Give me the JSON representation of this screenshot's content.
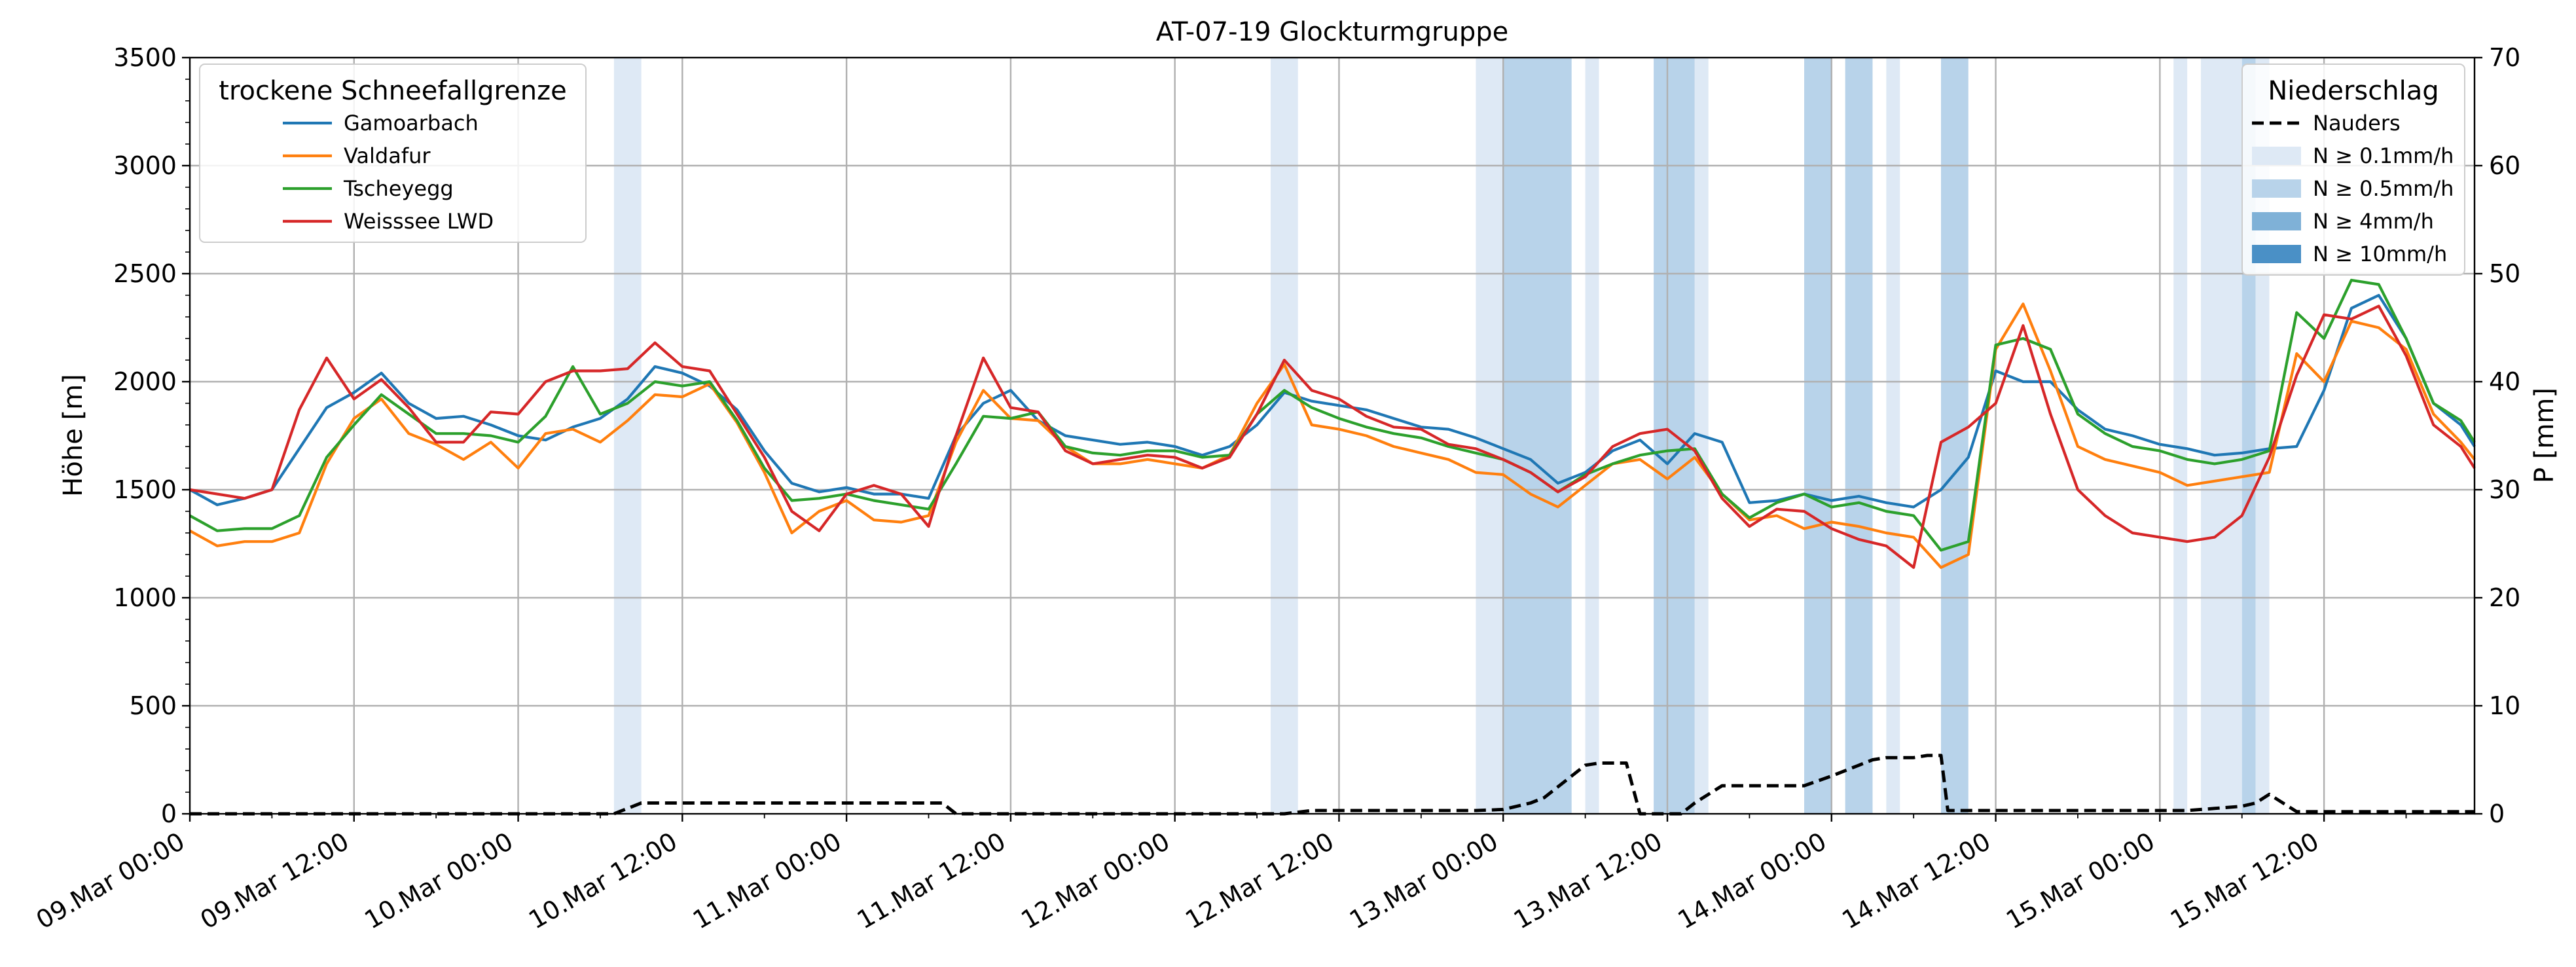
{
  "chart_data": {
    "type": "line",
    "title": "AT-07-19 Glockturmgruppe",
    "ylabel_left": "Höhe [m]",
    "ylabel_right": "P [mm]",
    "xlim_hours": [
      0,
      167
    ],
    "ylim_left": [
      0,
      3500
    ],
    "ylim_right": [
      0,
      70
    ],
    "left_ticks": [
      0,
      500,
      1000,
      1500,
      2000,
      2500,
      3000,
      3500
    ],
    "right_ticks": [
      0,
      10,
      20,
      30,
      40,
      50,
      60,
      70
    ],
    "grid": true,
    "x_tick_labels": [
      "09.Mar 00:00",
      "09.Mar 12:00",
      "10.Mar 00:00",
      "10.Mar 12:00",
      "11.Mar 00:00",
      "11.Mar 12:00",
      "12.Mar 00:00",
      "12.Mar 12:00",
      "13.Mar 00:00",
      "13.Mar 12:00",
      "14.Mar 00:00",
      "14.Mar 12:00",
      "15.Mar 00:00",
      "15.Mar 12:00"
    ],
    "x_tick_hours": [
      0,
      12,
      24,
      36,
      48,
      60,
      72,
      84,
      96,
      108,
      120,
      132,
      144,
      156
    ],
    "legend_left": {
      "title": "trockene Schneefallgrenze",
      "location": "upper-left"
    },
    "legend_right": {
      "title": "Niederschlag",
      "location": "upper-right",
      "entries": [
        {
          "label": "Nauders",
          "style": "dashed",
          "color": "#000000"
        },
        {
          "label": "N ≥ 0.1mm/h",
          "color": "#dee9f5"
        },
        {
          "label": "N ≥ 0.5mm/h",
          "color": "#b8d3ea"
        },
        {
          "label": "N ≥ 4mm/h",
          "color": "#7fb1d7"
        },
        {
          "label": "N ≥ 10mm/h",
          "color": "#4a90c6"
        }
      ]
    },
    "precip_bands": [
      {
        "start": 31.0,
        "end": 33.0,
        "level": 1
      },
      {
        "start": 79.0,
        "end": 81.0,
        "level": 1
      },
      {
        "start": 94.0,
        "end": 96.0,
        "level": 1
      },
      {
        "start": 96.0,
        "end": 101.0,
        "level": 2
      },
      {
        "start": 102.0,
        "end": 103.0,
        "level": 1
      },
      {
        "start": 107.0,
        "end": 110.0,
        "level": 2
      },
      {
        "start": 110.0,
        "end": 111.0,
        "level": 1
      },
      {
        "start": 118.0,
        "end": 120.0,
        "level": 2
      },
      {
        "start": 121.0,
        "end": 123.0,
        "level": 2
      },
      {
        "start": 124.0,
        "end": 125.0,
        "level": 1
      },
      {
        "start": 128.0,
        "end": 130.0,
        "level": 2
      },
      {
        "start": 145.0,
        "end": 146.0,
        "level": 1
      },
      {
        "start": 147.0,
        "end": 150.0,
        "level": 1
      },
      {
        "start": 150.0,
        "end": 151.0,
        "level": 2
      },
      {
        "start": 151.0,
        "end": 152.0,
        "level": 1
      }
    ],
    "series": [
      {
        "name": "Gamoarbach",
        "color": "#1f77b4",
        "x": [
          0,
          2,
          4,
          6,
          8,
          10,
          12,
          14,
          16,
          18,
          20,
          22,
          24,
          26,
          28,
          30,
          32,
          34,
          36,
          38,
          40,
          42,
          44,
          46,
          48,
          50,
          52,
          54,
          56,
          58,
          60,
          62,
          64,
          66,
          68,
          70,
          72,
          74,
          76,
          78,
          80,
          82,
          84,
          86,
          88,
          90,
          92,
          94,
          96,
          98,
          100,
          102,
          104,
          106,
          108,
          110,
          112,
          114,
          116,
          118,
          120,
          122,
          124,
          126,
          128,
          130,
          132,
          134,
          136,
          138,
          140,
          142,
          144,
          146,
          148,
          150,
          152,
          154,
          156,
          158,
          160,
          162,
          164,
          166,
          167
        ],
        "y": [
          1500,
          1430,
          1460,
          1500,
          1690,
          1880,
          1950,
          2040,
          1900,
          1830,
          1840,
          1800,
          1750,
          1730,
          1790,
          1830,
          1920,
          2070,
          2040,
          1980,
          1870,
          1680,
          1530,
          1490,
          1510,
          1480,
          1480,
          1460,
          1750,
          1900,
          1960,
          1820,
          1750,
          1730,
          1710,
          1720,
          1700,
          1660,
          1700,
          1800,
          1950,
          1910,
          1890,
          1870,
          1830,
          1790,
          1780,
          1740,
          1690,
          1640,
          1530,
          1580,
          1680,
          1730,
          1620,
          1760,
          1720,
          1440,
          1450,
          1480,
          1450,
          1470,
          1440,
          1420,
          1500,
          1650,
          2050,
          2000,
          2000,
          1870,
          1780,
          1750,
          1710,
          1690,
          1660,
          1670,
          1690,
          1700,
          1960,
          2340,
          2400,
          2200,
          1900,
          1800,
          1700
        ]
      },
      {
        "name": "Valdafur",
        "color": "#ff7f0e",
        "x": [
          0,
          2,
          4,
          6,
          8,
          10,
          12,
          14,
          16,
          18,
          20,
          22,
          24,
          26,
          28,
          30,
          32,
          34,
          36,
          38,
          40,
          42,
          44,
          46,
          48,
          50,
          52,
          54,
          56,
          58,
          60,
          62,
          64,
          66,
          68,
          70,
          72,
          74,
          76,
          78,
          80,
          82,
          84,
          86,
          88,
          90,
          92,
          94,
          96,
          98,
          100,
          102,
          104,
          106,
          108,
          110,
          112,
          114,
          116,
          118,
          120,
          122,
          124,
          126,
          128,
          130,
          132,
          134,
          136,
          138,
          140,
          142,
          144,
          146,
          148,
          150,
          152,
          154,
          156,
          158,
          160,
          162,
          164,
          166,
          167
        ],
        "y": [
          1310,
          1240,
          1260,
          1260,
          1300,
          1620,
          1830,
          1920,
          1760,
          1710,
          1640,
          1720,
          1600,
          1760,
          1780,
          1720,
          1820,
          1940,
          1930,
          1990,
          1810,
          1580,
          1300,
          1400,
          1450,
          1360,
          1350,
          1380,
          1720,
          1960,
          1830,
          1820,
          1700,
          1620,
          1620,
          1640,
          1620,
          1600,
          1660,
          1900,
          2080,
          1800,
          1780,
          1750,
          1700,
          1670,
          1640,
          1580,
          1570,
          1480,
          1420,
          1520,
          1620,
          1640,
          1550,
          1650,
          1480,
          1360,
          1380,
          1320,
          1350,
          1330,
          1300,
          1280,
          1140,
          1200,
          2150,
          2360,
          2050,
          1700,
          1640,
          1610,
          1580,
          1520,
          1540,
          1560,
          1580,
          2130,
          2000,
          2280,
          2250,
          2150,
          1850,
          1720,
          1640
        ]
      },
      {
        "name": "Tscheyegg",
        "color": "#2ca02c",
        "x": [
          0,
          2,
          4,
          6,
          8,
          10,
          12,
          14,
          16,
          18,
          20,
          22,
          24,
          26,
          28,
          30,
          32,
          34,
          36,
          38,
          40,
          42,
          44,
          46,
          48,
          50,
          52,
          54,
          56,
          58,
          60,
          62,
          64,
          66,
          68,
          70,
          72,
          74,
          76,
          78,
          80,
          82,
          84,
          86,
          88,
          90,
          92,
          94,
          96,
          98,
          100,
          102,
          104,
          106,
          108,
          110,
          112,
          114,
          116,
          118,
          120,
          122,
          124,
          126,
          128,
          130,
          132,
          134,
          136,
          138,
          140,
          142,
          144,
          146,
          148,
          150,
          152,
          154,
          156,
          158,
          160,
          162,
          164,
          166,
          167
        ],
        "y": [
          1380,
          1310,
          1320,
          1320,
          1380,
          1650,
          1800,
          1940,
          1850,
          1760,
          1760,
          1750,
          1720,
          1840,
          2070,
          1850,
          1900,
          2000,
          1980,
          2000,
          1820,
          1600,
          1450,
          1460,
          1480,
          1450,
          1430,
          1410,
          1620,
          1840,
          1830,
          1860,
          1700,
          1670,
          1660,
          1680,
          1680,
          1650,
          1660,
          1850,
          1960,
          1880,
          1830,
          1790,
          1760,
          1740,
          1700,
          1670,
          1640,
          1580,
          1490,
          1570,
          1620,
          1660,
          1680,
          1690,
          1480,
          1370,
          1440,
          1480,
          1420,
          1440,
          1400,
          1380,
          1220,
          1260,
          2170,
          2200,
          2150,
          1850,
          1760,
          1700,
          1680,
          1640,
          1620,
          1640,
          1680,
          2320,
          2200,
          2470,
          2450,
          2200,
          1900,
          1820,
          1720
        ]
      },
      {
        "name": "Weisssee LWD",
        "color": "#d62728",
        "x": [
          0,
          2,
          4,
          6,
          8,
          10,
          12,
          14,
          16,
          18,
          20,
          22,
          24,
          26,
          28,
          30,
          32,
          34,
          36,
          38,
          40,
          42,
          44,
          46,
          48,
          50,
          52,
          54,
          56,
          58,
          60,
          62,
          64,
          66,
          68,
          70,
          72,
          74,
          76,
          78,
          80,
          82,
          84,
          86,
          88,
          90,
          92,
          94,
          96,
          98,
          100,
          102,
          104,
          106,
          108,
          110,
          112,
          114,
          116,
          118,
          120,
          122,
          124,
          126,
          128,
          130,
          132,
          134,
          136,
          138,
          140,
          142,
          144,
          146,
          148,
          150,
          152,
          154,
          156,
          158,
          160,
          162,
          164,
          166,
          167
        ],
        "y": [
          1500,
          1480,
          1460,
          1500,
          1870,
          2110,
          1920,
          2010,
          1880,
          1720,
          1720,
          1860,
          1850,
          2000,
          2050,
          2050,
          2060,
          2180,
          2070,
          2050,
          1850,
          1650,
          1400,
          1310,
          1480,
          1520,
          1480,
          1330,
          1750,
          2110,
          1880,
          1860,
          1680,
          1620,
          1640,
          1660,
          1650,
          1600,
          1650,
          1850,
          2100,
          1960,
          1920,
          1840,
          1790,
          1780,
          1710,
          1690,
          1640,
          1580,
          1490,
          1560,
          1700,
          1760,
          1780,
          1680,
          1460,
          1330,
          1410,
          1400,
          1320,
          1270,
          1240,
          1140,
          1720,
          1790,
          1900,
          2260,
          1850,
          1500,
          1380,
          1300,
          1280,
          1260,
          1280,
          1380,
          1650,
          2030,
          2310,
          2290,
          2350,
          2120,
          1800,
          1700,
          1600
        ]
      },
      {
        "name": "Nauders",
        "axis": "right",
        "style": "dashed",
        "color": "#000000",
        "x": [
          0,
          31,
          33,
          36,
          40,
          44,
          48,
          52,
          55,
          56,
          58,
          60,
          64,
          68,
          72,
          76,
          80,
          82,
          84,
          88,
          92,
          94,
          96,
          98,
          99,
          100,
          101,
          102,
          103,
          104,
          105,
          106,
          107,
          108,
          109,
          110,
          112,
          114,
          116,
          118,
          120,
          122,
          123,
          124,
          126,
          127,
          128,
          128.5,
          130,
          134,
          138,
          142,
          146,
          148,
          150,
          151,
          152,
          154,
          158,
          162,
          166,
          167
        ],
        "y": [
          0,
          0,
          1,
          1,
          1,
          1,
          1,
          1,
          1,
          0,
          0,
          0,
          0,
          0,
          0,
          0,
          0,
          0.3,
          0.3,
          0.3,
          0.3,
          0.3,
          0.4,
          1.0,
          1.5,
          2.5,
          3.5,
          4.5,
          4.7,
          4.7,
          4.7,
          0,
          0,
          0,
          0,
          1.0,
          2.6,
          2.6,
          2.6,
          2.6,
          3.5,
          4.5,
          5.0,
          5.2,
          5.2,
          5.4,
          5.4,
          0.3,
          0.3,
          0.3,
          0.3,
          0.3,
          0.3,
          0.5,
          0.7,
          1.0,
          1.8,
          0.2,
          0.2,
          0.2,
          0.2,
          0.2
        ]
      }
    ]
  }
}
